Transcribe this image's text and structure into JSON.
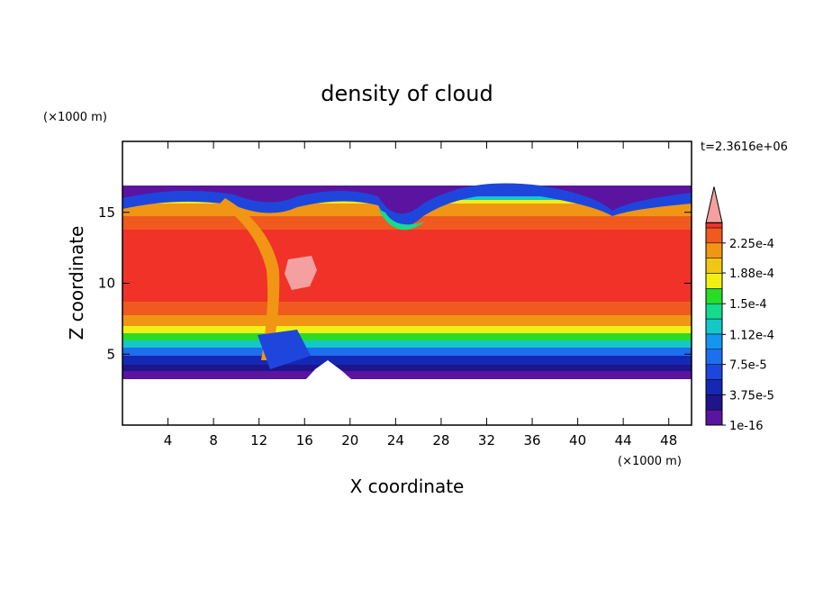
{
  "chart_data": {
    "type": "contour",
    "title": "density of cloud",
    "x_label": "X coordinate",
    "y_label": "Z coordinate",
    "x_unit_label": "(×1000 m)",
    "y_unit_label": "(×1000 m)",
    "annotation": "t=2.3616e+06",
    "xlim": [
      0,
      50
    ],
    "xticks": [
      4,
      8,
      12,
      16,
      20,
      24,
      28,
      32,
      36,
      40,
      44,
      48
    ],
    "ylim": [
      0,
      20
    ],
    "yticks": [
      5,
      10,
      15
    ],
    "colorbar": {
      "lim": [
        0,
        0.00025
      ],
      "ticks": [
        1e-16,
        {
          "value": 3.75e-05,
          "label": "3.75e-5"
        },
        {
          "value": 7.5e-05,
          "label": "7.5e-5"
        },
        {
          "value": 0.000112,
          "label": "1.12e-4"
        },
        {
          "value": 0.00015,
          "label": "1.5e-4"
        },
        {
          "value": 0.000188,
          "label": "1.88e-4"
        },
        {
          "value": 0.000225,
          "label": "2.25e-4"
        }
      ],
      "colors": [
        "#5a14a0",
        "#1e148c",
        "#1428b4",
        "#1e46dc",
        "#1e6ef0",
        "#1496f0",
        "#14c8c8",
        "#14dc8c",
        "#28dc28",
        "#f0f014",
        "#f0c814",
        "#f09614",
        "#f05a1e",
        "#f03228"
      ],
      "over_color": "#f4a0a0"
    }
  }
}
